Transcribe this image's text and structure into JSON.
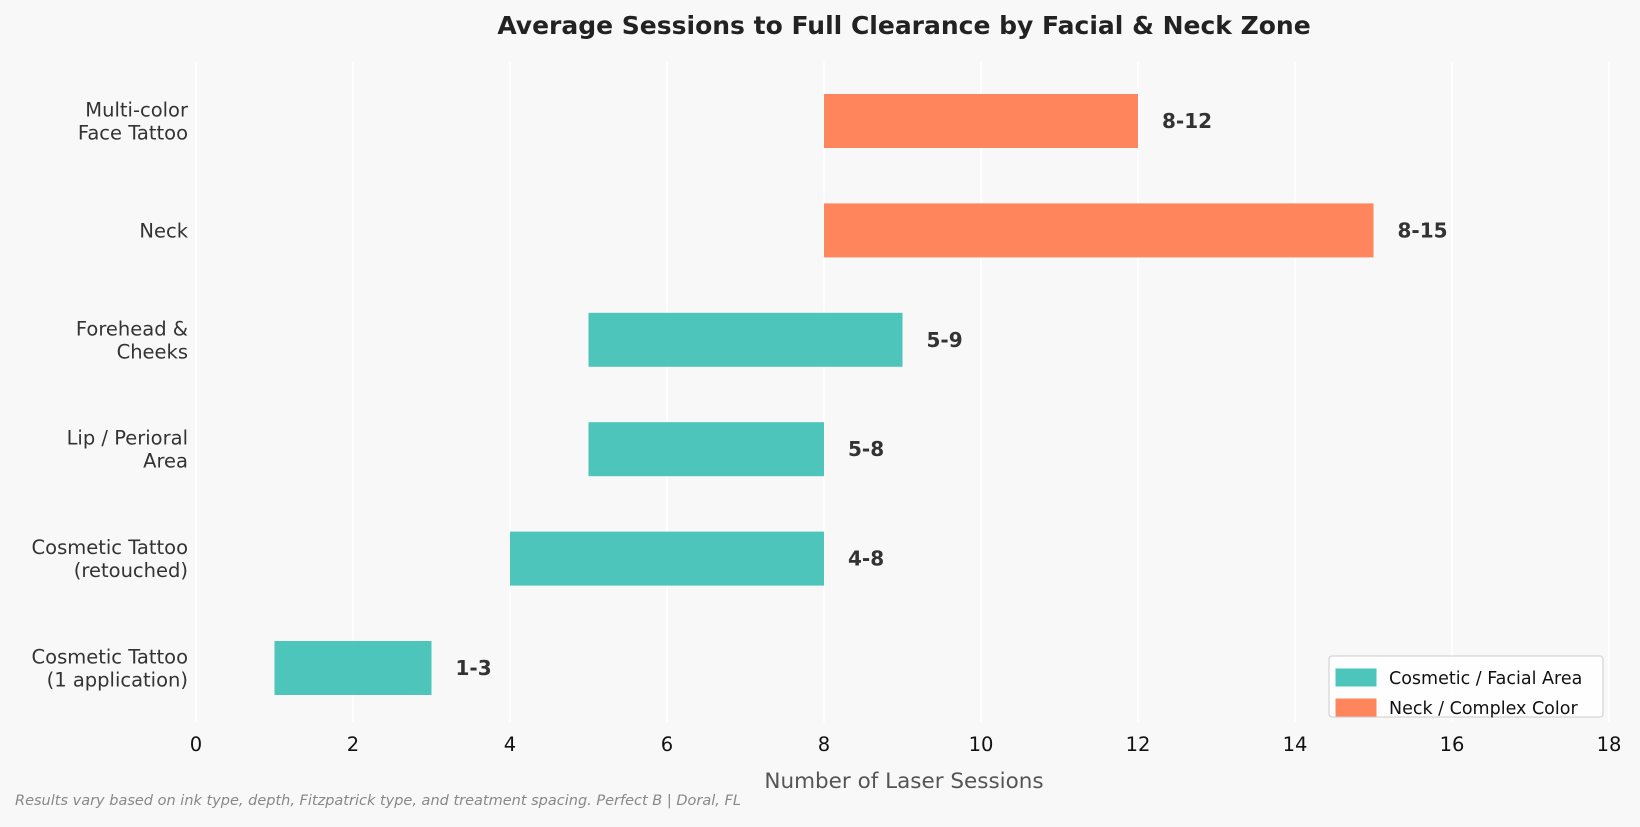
{
  "chart_data": {
    "type": "bar",
    "orientation": "horizontal",
    "title": "Average Sessions to Full Clearance by Facial & Neck Zone",
    "xlabel": "Number of Laser Sessions",
    "ylabel": "",
    "xlim": [
      0,
      18
    ],
    "xticks": [
      "0",
      "2",
      "4",
      "6",
      "8",
      "10",
      "12",
      "14",
      "16",
      "18"
    ],
    "grid": "vertical",
    "legend_position": "bottom-right",
    "bars": [
      {
        "category": [
          "Multi-color",
          "Face Tattoo"
        ],
        "start": 8,
        "end": 12,
        "label": "8-12",
        "group": "Neck / Complex Color"
      },
      {
        "category": [
          "Neck"
        ],
        "start": 8,
        "end": 15,
        "label": "8-15",
        "group": "Neck / Complex Color"
      },
      {
        "category": [
          "Forehead &",
          "Cheeks"
        ],
        "start": 5,
        "end": 9,
        "label": "5-9",
        "group": "Cosmetic / Facial Area"
      },
      {
        "category": [
          "Lip / Perioral",
          "Area"
        ],
        "start": 5,
        "end": 8,
        "label": "5-8",
        "group": "Cosmetic / Facial Area"
      },
      {
        "category": [
          "Cosmetic Tattoo",
          "(retouched)"
        ],
        "start": 4,
        "end": 8,
        "label": "4-8",
        "group": "Cosmetic / Facial Area"
      },
      {
        "category": [
          "Cosmetic Tattoo",
          "(1 application)"
        ],
        "start": 1,
        "end": 3,
        "label": "1-3",
        "group": "Cosmetic / Facial Area"
      }
    ],
    "legend": [
      {
        "label": "Cosmetic / Facial Area",
        "color": "#4ec5bb"
      },
      {
        "label": "Neck / Complex Color",
        "color": "#ff855d"
      }
    ]
  },
  "footnote": "Results vary based on ink type, depth, Fitzpatrick type, and treatment spacing. Perfect B | Doral, FL"
}
